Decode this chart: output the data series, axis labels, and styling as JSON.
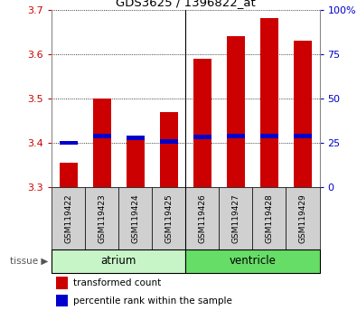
{
  "title": "GDS3625 / 1396822_at",
  "samples": [
    "GSM119422",
    "GSM119423",
    "GSM119424",
    "GSM119425",
    "GSM119426",
    "GSM119427",
    "GSM119428",
    "GSM119429"
  ],
  "red_values": [
    3.355,
    3.5,
    3.41,
    3.47,
    3.59,
    3.64,
    3.68,
    3.63
  ],
  "blue_values": [
    3.4,
    3.415,
    3.412,
    3.403,
    3.413,
    3.415,
    3.415,
    3.415
  ],
  "baseline": 3.3,
  "ylim_left": [
    3.3,
    3.7
  ],
  "yticks_left": [
    3.3,
    3.4,
    3.5,
    3.6,
    3.7
  ],
  "yticks_right": [
    0,
    25,
    50,
    75,
    100
  ],
  "ytick_labels_right": [
    "0",
    "25",
    "50",
    "75",
    "100%"
  ],
  "tissue_groups": [
    {
      "label": "atrium",
      "n": 4,
      "color": "#c8f5c8"
    },
    {
      "label": "ventricle",
      "n": 4,
      "color": "#66dd66"
    }
  ],
  "bar_color": "#cc0000",
  "blue_marker_color": "#0000cc",
  "bar_width": 0.55,
  "left_axis_color": "#cc0000",
  "right_axis_color": "#0000cc",
  "sample_box_color": "#d0d0d0",
  "grid_linestyle": "dotted"
}
